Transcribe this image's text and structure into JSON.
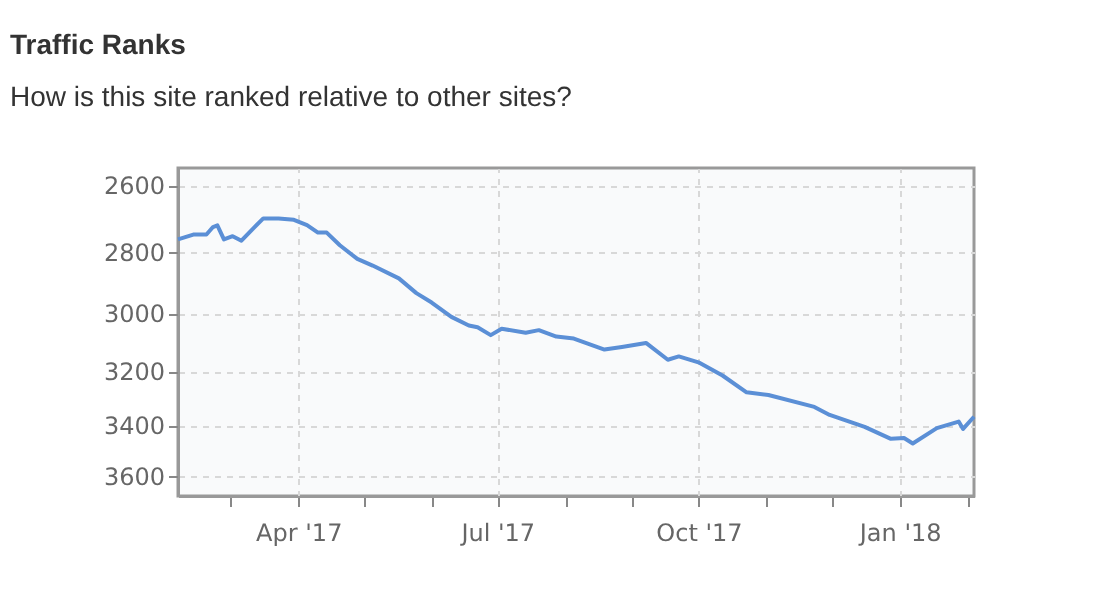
{
  "chart_data": {
    "type": "line",
    "title": "Traffic Ranks",
    "subtitle": "How is this site ranked relative to other sites?",
    "x": [
      "2017-02-05",
      "2017-02-12",
      "2017-02-18",
      "2017-02-21",
      "2017-02-23",
      "2017-02-26",
      "2017-03-02",
      "2017-03-06",
      "2017-03-11",
      "2017-03-16",
      "2017-03-23",
      "2017-03-30",
      "2017-04-05",
      "2017-04-10",
      "2017-04-14",
      "2017-04-20",
      "2017-04-28",
      "2017-05-05",
      "2017-05-17",
      "2017-05-25",
      "2017-06-01",
      "2017-06-10",
      "2017-06-18",
      "2017-06-22",
      "2017-06-28",
      "2017-07-03",
      "2017-07-14",
      "2017-07-20",
      "2017-07-28",
      "2017-08-05",
      "2017-08-19",
      "2017-08-27",
      "2017-09-07",
      "2017-09-17",
      "2017-09-22",
      "2017-10-01",
      "2017-10-12",
      "2017-10-23",
      "2017-11-02",
      "2017-11-23",
      "2017-11-30",
      "2017-12-16",
      "2017-12-28",
      "2018-01-03",
      "2018-01-07",
      "2018-01-18",
      "2018-01-28",
      "2018-01-30",
      "2018-02-04"
    ],
    "series": [
      {
        "color": "#5b8fd6",
        "values": [
          2762,
          2747,
          2747,
          2724,
          2719,
          2762,
          2752,
          2766,
          2731,
          2698,
          2698,
          2702,
          2718,
          2741,
          2741,
          2780,
          2823,
          2844,
          2885,
          2933,
          2964,
          3012,
          3041,
          3047,
          3074,
          3052,
          3066,
          3057,
          3079,
          3086,
          3124,
          3115,
          3101,
          3160,
          3148,
          3169,
          3216,
          3277,
          3287,
          3331,
          3361,
          3406,
          3452,
          3449,
          3470,
          3411,
          3386,
          3414,
          3368
        ]
      }
    ],
    "xlim": [
      "2017-02-05",
      "2018-02-04"
    ],
    "xticks": [
      {
        "value": "2017-03-01",
        "label": null
      },
      {
        "value": "2017-04-01",
        "label": "Apr '17"
      },
      {
        "value": "2017-05-01",
        "label": null
      },
      {
        "value": "2017-06-01",
        "label": null
      },
      {
        "value": "2017-07-01",
        "label": "Jul '17"
      },
      {
        "value": "2017-08-01",
        "label": null
      },
      {
        "value": "2017-09-01",
        "label": null
      },
      {
        "value": "2017-10-01",
        "label": "Oct '17"
      },
      {
        "value": "2017-11-01",
        "label": null
      },
      {
        "value": "2017-12-01",
        "label": null
      },
      {
        "value": "2018-01-01",
        "label": "Jan '18"
      },
      {
        "value": "2018-02-01",
        "label": null
      }
    ],
    "ylim": [
      3680,
      2550
    ],
    "yticks": [
      2600,
      2800,
      3000,
      3200,
      3400,
      3600
    ],
    "log": "y",
    "grid": true,
    "marker": "none",
    "line_style": "solid"
  }
}
